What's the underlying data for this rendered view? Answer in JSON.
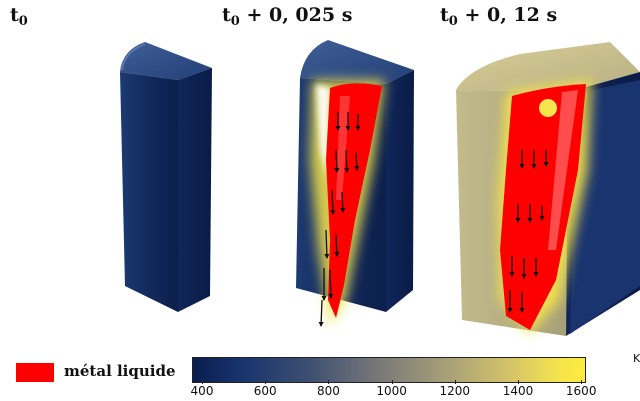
{
  "labels": {
    "t0": "t",
    "t0_sub": "0",
    "t1_base": "t",
    "t1_sub": "0",
    "t1_rest": " + 0, 025 s",
    "t2_base": "t",
    "t2_sub": "0",
    "t2_rest": " + 0, 12 s"
  },
  "legend": {
    "text": "métal liquide",
    "color": "#ff0000"
  },
  "colorbar": {
    "ticks": [
      "400",
      "600",
      "800",
      "1000",
      "1200",
      "1400",
      "1600"
    ],
    "unit": "K"
  },
  "colors": {
    "cold": "#0f2457",
    "hot": "#f6e54c",
    "liquid": "#ff0000"
  }
}
